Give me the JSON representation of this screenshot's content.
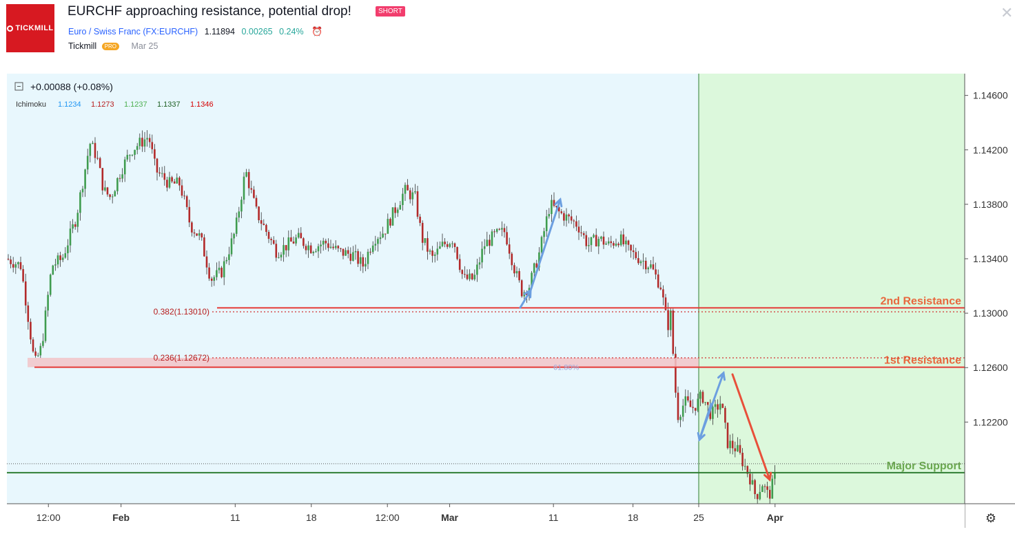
{
  "header": {
    "logo_text": "TICKMILL",
    "title": "EURCHF approaching resistance, potential drop!",
    "badge": "SHORT",
    "symbol": "Euro / Swiss Franc (FX:EURCHF)",
    "price": "1.11894",
    "change": "0.00265",
    "change_pct": "0.24%",
    "author": "Tickmill",
    "author_badge": "PRO",
    "date": "Mar 25",
    "close_icon": "close-icon",
    "alarm_icon": "alarm-clock-icon"
  },
  "legend": {
    "change": "+0.00088 (+0.08%)",
    "indicator": "Ichimoku",
    "values": [
      "1.1234",
      "1.1273",
      "1.1237",
      "1.1337",
      "1.1346"
    ],
    "value_colors": [
      "#2196f3",
      "#b71c1c",
      "#4caf50",
      "#1b5e20",
      "#d50000"
    ],
    "collapse_icon": "collapse-icon"
  },
  "chart_data": {
    "type": "candlestick",
    "y_range": [
      1.116,
      1.1476
    ],
    "y_ticks": [
      "1.14600",
      "1.14200",
      "1.13800",
      "1.13400",
      "1.13000",
      "1.12600",
      "1.12200"
    ],
    "x_ticks": [
      "12:00",
      "Feb",
      "11",
      "18",
      "12:00",
      "Mar",
      "11",
      "18",
      "25",
      "Apr"
    ],
    "series": [
      {
        "x": 0.0,
        "y": 1.134
      },
      {
        "x": 0.02,
        "y": 1.1335
      },
      {
        "x": 0.03,
        "y": 1.13
      },
      {
        "x": 0.04,
        "y": 1.1262
      },
      {
        "x": 0.05,
        "y": 1.1275
      },
      {
        "x": 0.065,
        "y": 1.1335
      },
      {
        "x": 0.08,
        "y": 1.134
      },
      {
        "x": 0.1,
        "y": 1.137
      },
      {
        "x": 0.12,
        "y": 1.1425
      },
      {
        "x": 0.13,
        "y": 1.1415
      },
      {
        "x": 0.14,
        "y": 1.139
      },
      {
        "x": 0.15,
        "y": 1.1385
      },
      {
        "x": 0.165,
        "y": 1.1405
      },
      {
        "x": 0.18,
        "y": 1.142
      },
      {
        "x": 0.205,
        "y": 1.143
      },
      {
        "x": 0.215,
        "y": 1.1405
      },
      {
        "x": 0.235,
        "y": 1.1395
      },
      {
        "x": 0.25,
        "y": 1.1395
      },
      {
        "x": 0.265,
        "y": 1.1365
      },
      {
        "x": 0.28,
        "y": 1.1355
      },
      {
        "x": 0.295,
        "y": 1.1325
      },
      {
        "x": 0.31,
        "y": 1.133
      },
      {
        "x": 0.33,
        "y": 1.136
      },
      {
        "x": 0.345,
        "y": 1.1405
      },
      {
        "x": 0.36,
        "y": 1.1375
      },
      {
        "x": 0.375,
        "y": 1.136
      },
      {
        "x": 0.39,
        "y": 1.1345
      },
      {
        "x": 0.405,
        "y": 1.135
      },
      {
        "x": 0.42,
        "y": 1.1355
      },
      {
        "x": 0.44,
        "y": 1.1348
      },
      {
        "x": 0.46,
        "y": 1.1352
      },
      {
        "x": 0.48,
        "y": 1.1345
      },
      {
        "x": 0.5,
        "y": 1.1343
      },
      {
        "x": 0.515,
        "y": 1.1335
      },
      {
        "x": 0.53,
        "y": 1.1355
      },
      {
        "x": 0.545,
        "y": 1.136
      },
      {
        "x": 0.56,
        "y": 1.1375
      },
      {
        "x": 0.575,
        "y": 1.139
      },
      {
        "x": 0.59,
        "y": 1.1385
      },
      {
        "x": 0.6,
        "y": 1.1355
      },
      {
        "x": 0.615,
        "y": 1.134
      },
      {
        "x": 0.63,
        "y": 1.135
      },
      {
        "x": 0.645,
        "y": 1.1355
      },
      {
        "x": 0.66,
        "y": 1.1325
      },
      {
        "x": 0.675,
        "y": 1.1325
      },
      {
        "x": 0.69,
        "y": 1.135
      },
      {
        "x": 0.705,
        "y": 1.1357
      },
      {
        "x": 0.72,
        "y": 1.136
      },
      {
        "x": 0.735,
        "y": 1.133
      },
      {
        "x": 0.745,
        "y": 1.1315
      },
      {
        "x": 0.755,
        "y": 1.132
      },
      {
        "x": 0.77,
        "y": 1.1345
      },
      {
        "x": 0.785,
        "y": 1.138
      },
      {
        "x": 0.795,
        "y": 1.1375
      },
      {
        "x": 0.81,
        "y": 1.137
      },
      {
        "x": 0.825,
        "y": 1.1365
      },
      {
        "x": 0.84,
        "y": 1.135
      },
      {
        "x": 0.855,
        "y": 1.1355
      },
      {
        "x": 0.87,
        "y": 1.135
      },
      {
        "x": 0.885,
        "y": 1.1355
      },
      {
        "x": 0.9,
        "y": 1.1345
      },
      {
        "x": 0.915,
        "y": 1.134
      },
      {
        "x": 0.93,
        "y": 1.1335
      },
      {
        "x": 0.945,
        "y": 1.132
      },
      {
        "x": 0.955,
        "y": 1.129
      },
      {
        "x": 0.96,
        "y": 1.13
      },
      {
        "x": 0.965,
        "y": 1.125
      },
      {
        "x": 0.97,
        "y": 1.1225
      },
      {
        "x": 0.98,
        "y": 1.1235
      },
      {
        "x": 0.99,
        "y": 1.123
      },
      {
        "x": 1.0,
        "y": 1.1235
      }
    ],
    "x_ticks_pos": [
      0.06,
      0.165,
      0.33,
      0.44,
      0.55,
      0.64,
      0.79,
      0.905,
      1.0,
      1.12
    ],
    "future_candles": [
      {
        "x": 1.005,
        "y": 1.124
      },
      {
        "x": 1.02,
        "y": 1.1225
      },
      {
        "x": 1.035,
        "y": 1.1235
      },
      {
        "x": 1.045,
        "y": 1.1205
      },
      {
        "x": 1.06,
        "y": 1.12
      },
      {
        "x": 1.07,
        "y": 1.119
      },
      {
        "x": 1.08,
        "y": 1.118
      },
      {
        "x": 1.09,
        "y": 1.1165
      },
      {
        "x": 1.1,
        "y": 1.1175
      },
      {
        "x": 1.11,
        "y": 1.1165
      },
      {
        "x": 1.12,
        "y": 1.118
      }
    ],
    "levels": [
      {
        "name": "2nd Resistance",
        "value": 1.13039,
        "tag": "1.13039",
        "color": "#e53935",
        "label_color": "#e8673d"
      },
      {
        "name": "1st Resistance",
        "value": 1.12603,
        "tag": "1.12603",
        "color": "#e53935",
        "label_color": "#e8673d"
      },
      {
        "name": "Major Support",
        "value": 1.11828,
        "tag": "1.11828",
        "color": "#2e7d32",
        "label_color": "#6aa84f"
      }
    ],
    "current_price": {
      "value": 1.11894,
      "tag": "1.11894"
    },
    "fib_labels": [
      {
        "text": "0.382(1.13010)",
        "value": 1.1301
      },
      {
        "text": "0.236(1.12672)",
        "value": 1.12672
      }
    ],
    "fib_faint_label": "61.80%",
    "colors": {
      "bull": "#3f9c4f",
      "bear": "#b22a2a",
      "background": "#e8f7fd",
      "forecast_zone": "#dcf8dc",
      "axis_text": "#333333",
      "arrow_blue": "#6c9fe0",
      "arrow_red": "#e8503a",
      "resistance_zone": "#f2c4c8"
    }
  },
  "axis_settings_icon": "gear-icon"
}
